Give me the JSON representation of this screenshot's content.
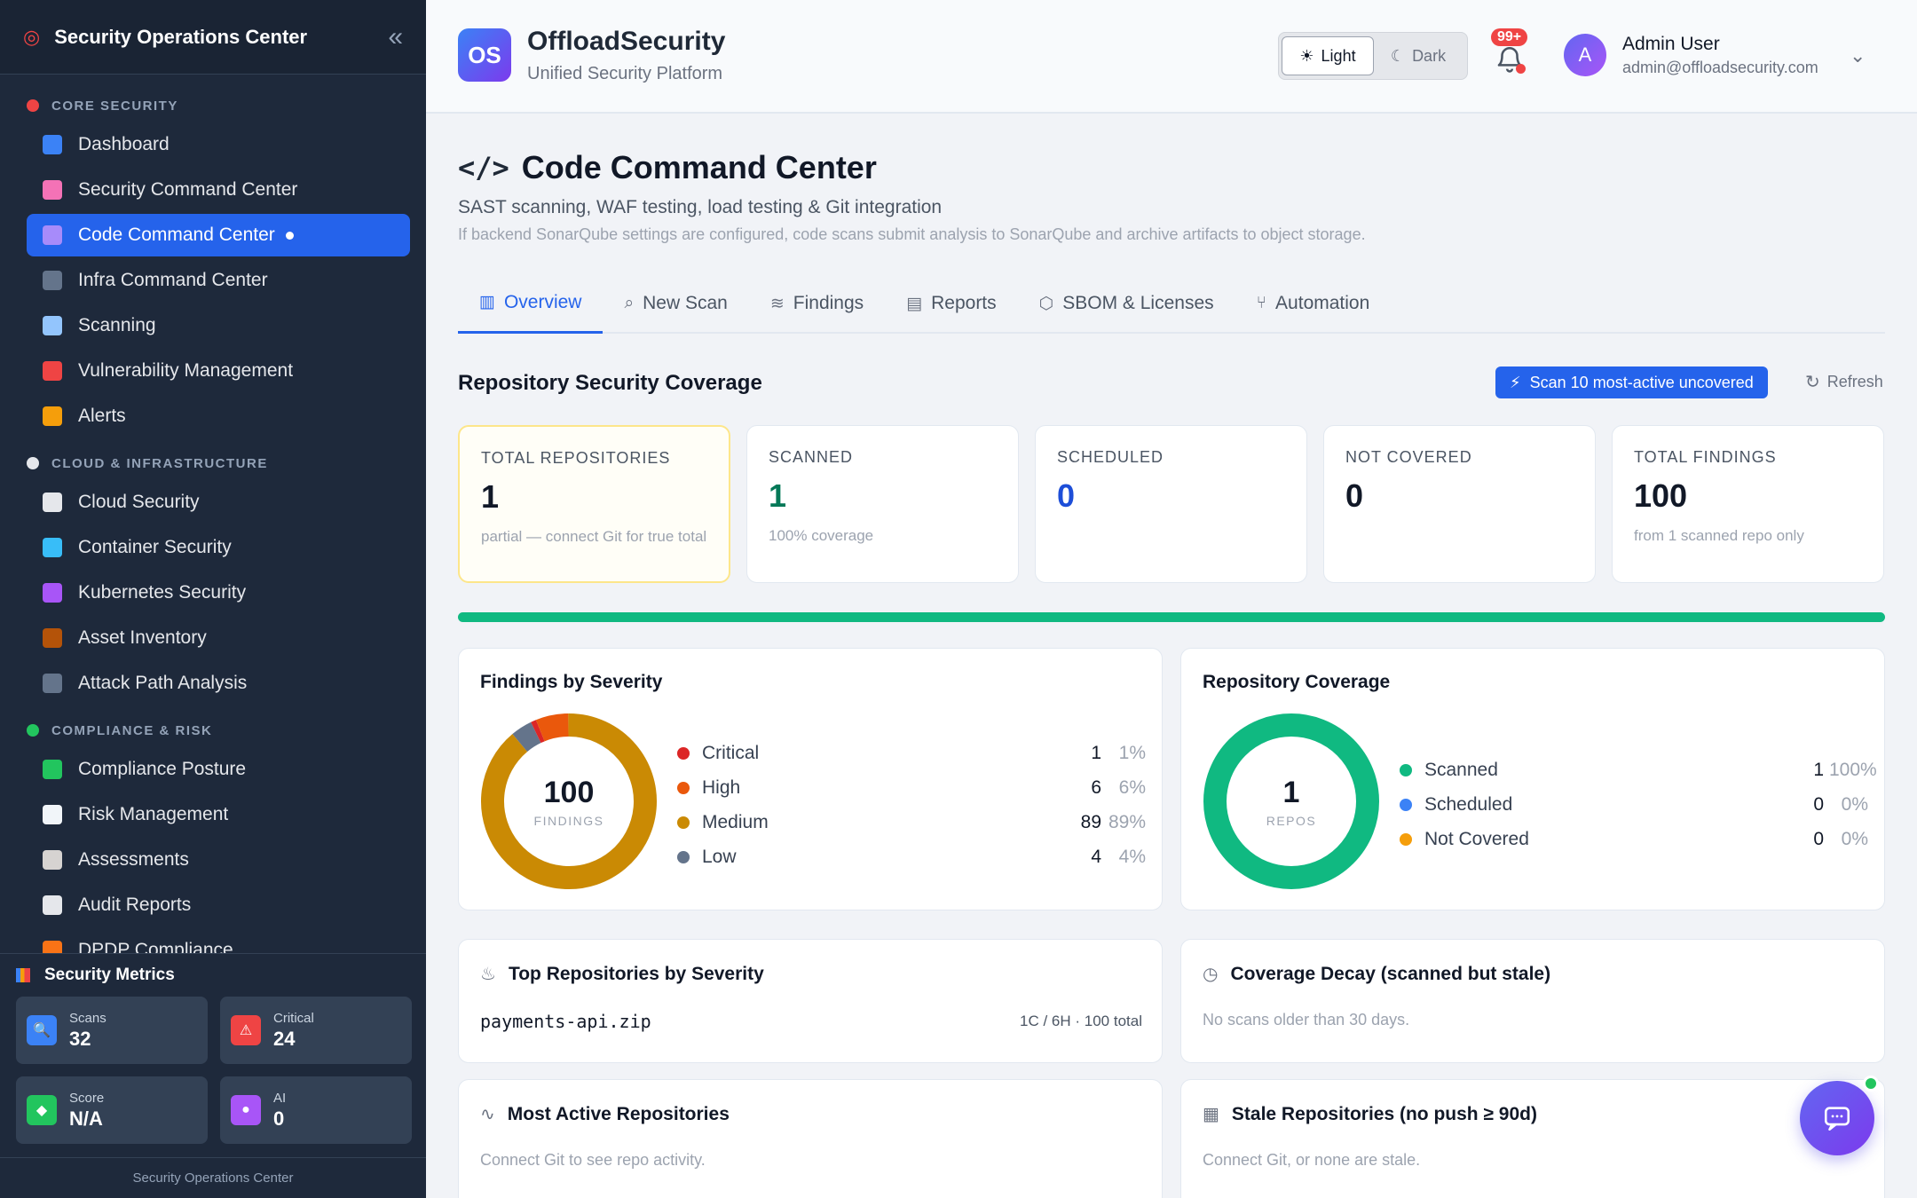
{
  "sidebar": {
    "title": "Security Operations Center",
    "sections": [
      {
        "title": "CORE SECURITY",
        "icon": "shield-icon",
        "icon_color": "#ef4444",
        "items": [
          {
            "label": "Dashboard",
            "icon": "bar-chart-icon",
            "color": "#3b82f6"
          },
          {
            "label": "Security Command Center",
            "icon": "brain-icon",
            "color": "#f472b6"
          },
          {
            "label": "Code Command Center",
            "icon": "dna-icon",
            "color": "#a78bfa",
            "active": true
          },
          {
            "label": "Infra Command Center",
            "icon": "monitor-icon",
            "color": "#64748b"
          },
          {
            "label": "Scanning",
            "icon": "magnifier-icon",
            "color": "#93c5fd"
          },
          {
            "label": "Vulnerability Management",
            "icon": "shield-icon",
            "color": "#ef4444"
          },
          {
            "label": "Alerts",
            "icon": "bell-icon",
            "color": "#f59e0b"
          }
        ]
      },
      {
        "title": "CLOUD & INFRASTRUCTURE",
        "icon": "cloud-icon",
        "icon_color": "#e5e7eb",
        "items": [
          {
            "label": "Cloud Security",
            "icon": "cloud-icon",
            "color": "#e5e7eb"
          },
          {
            "label": "Container Security",
            "icon": "whale-icon",
            "color": "#38bdf8"
          },
          {
            "label": "Kubernetes Security",
            "icon": "atom-icon",
            "color": "#a855f7"
          },
          {
            "label": "Asset Inventory",
            "icon": "package-icon",
            "color": "#b45309"
          },
          {
            "label": "Attack Path Analysis",
            "icon": "spider-web-icon",
            "color": "#64748b"
          }
        ]
      },
      {
        "title": "COMPLIANCE & RISK",
        "icon": "check-box-icon",
        "icon_color": "#22c55e",
        "items": [
          {
            "label": "Compliance Posture",
            "icon": "check-box-icon",
            "color": "#22c55e"
          },
          {
            "label": "Risk Management",
            "icon": "trend-chart-icon",
            "color": "#f1f5f9"
          },
          {
            "label": "Assessments",
            "icon": "clipboard-icon",
            "color": "#d6d3d1"
          },
          {
            "label": "Audit Reports",
            "icon": "document-icon",
            "color": "#e5e7eb"
          },
          {
            "label": "DPDP Compliance",
            "icon": "india-flag-icon",
            "color": "#f97316"
          }
        ]
      }
    ],
    "metrics": {
      "title": "Security Metrics",
      "cards": [
        {
          "label": "Scans",
          "value": "32",
          "icon": "magnifier-icon",
          "color": "#3b82f6",
          "glyph": "🔍"
        },
        {
          "label": "Critical",
          "value": "24",
          "icon": "warning-icon",
          "color": "#ef4444",
          "glyph": "⚠"
        },
        {
          "label": "Score",
          "value": "N/A",
          "icon": "shield-icon",
          "color": "#22c55e",
          "glyph": "◆"
        },
        {
          "label": "AI",
          "value": "0",
          "icon": "robot-icon",
          "color": "#a855f7",
          "glyph": "●"
        }
      ]
    },
    "footer": "Security Operations Center"
  },
  "topbar": {
    "logo_text": "OS",
    "brand": "OffloadSecurity",
    "subtitle": "Unified Security Platform",
    "theme_light": "Light",
    "theme_dark": "Dark",
    "notifications_badge": "99+",
    "avatar_initial": "A",
    "user_name": "Admin User",
    "user_email": "admin@offloadsecurity.com"
  },
  "page": {
    "title": "Code Command Center",
    "subtitle": "SAST scanning, WAF testing, load testing & Git integration",
    "note": "If backend SonarQube settings are configured, code scans submit analysis to SonarQube and archive artifacts to object storage.",
    "tabs": [
      {
        "label": "Overview",
        "icon": "bar-chart-icon",
        "glyph": "▥",
        "active": true
      },
      {
        "label": "New Scan",
        "icon": "search-icon",
        "glyph": "⌕"
      },
      {
        "label": "Findings",
        "icon": "layers-icon",
        "glyph": "≋"
      },
      {
        "label": "Reports",
        "icon": "clipboard-icon",
        "glyph": "▤"
      },
      {
        "label": "SBOM & Licenses",
        "icon": "box-icon",
        "glyph": "⬡"
      },
      {
        "label": "Automation",
        "icon": "git-branch-icon",
        "glyph": "⑂"
      }
    ]
  },
  "coverage": {
    "title": "Repository Security Coverage",
    "scan_button": "Scan 10 most-active uncovered",
    "refresh_button": "Refresh",
    "stats": [
      {
        "label": "TOTAL REPOSITORIES",
        "value": "1",
        "desc": "partial — connect Git for true total",
        "color": "#111827"
      },
      {
        "label": "SCANNED",
        "value": "1",
        "desc": "100% coverage",
        "color": "#047857"
      },
      {
        "label": "SCHEDULED",
        "value": "0",
        "desc": "",
        "color": "#1d4ed8"
      },
      {
        "label": "NOT COVERED",
        "value": "0",
        "desc": "",
        "color": "#111827"
      },
      {
        "label": "TOTAL FINDINGS",
        "value": "100",
        "desc": "from 1 scanned repo only",
        "color": "#111827"
      }
    ],
    "coverage_fraction": 1.0
  },
  "severity": {
    "title": "Findings by Severity",
    "total": "100",
    "total_label": "FINDINGS",
    "items": [
      {
        "name": "Critical",
        "count": "1",
        "pct": "1%",
        "value": 1,
        "color": "#dc2626"
      },
      {
        "name": "High",
        "count": "6",
        "pct": "6%",
        "value": 6,
        "color": "#ea580c"
      },
      {
        "name": "Medium",
        "count": "89",
        "pct": "89%",
        "value": 89,
        "color": "#ca8a04"
      },
      {
        "name": "Low",
        "count": "4",
        "pct": "4%",
        "value": 4,
        "color": "#64748b"
      }
    ]
  },
  "repo_coverage": {
    "title": "Repository Coverage",
    "total": "1",
    "total_label": "REPOS",
    "items": [
      {
        "name": "Scanned",
        "count": "1",
        "pct": "100%",
        "value": 1,
        "color": "#10b981"
      },
      {
        "name": "Scheduled",
        "count": "0",
        "pct": "0%",
        "value": 0,
        "color": "#3b82f6"
      },
      {
        "name": "Not Covered",
        "count": "0",
        "pct": "0%",
        "value": 0,
        "color": "#f59e0b"
      }
    ]
  },
  "top_repos": {
    "title": "Top Repositories by Severity",
    "rows": [
      {
        "name": "payments-api.zip",
        "meta": "1C / 6H · 100 total"
      }
    ]
  },
  "decay": {
    "title": "Coverage Decay (scanned but stale)",
    "empty": "No scans older than 30 days."
  },
  "most_active": {
    "title": "Most Active Repositories",
    "empty": "Connect Git to see repo activity."
  },
  "stale": {
    "title": "Stale Repositories (no push ≥ 90d)",
    "empty": "Connect Git, or none are stale."
  }
}
